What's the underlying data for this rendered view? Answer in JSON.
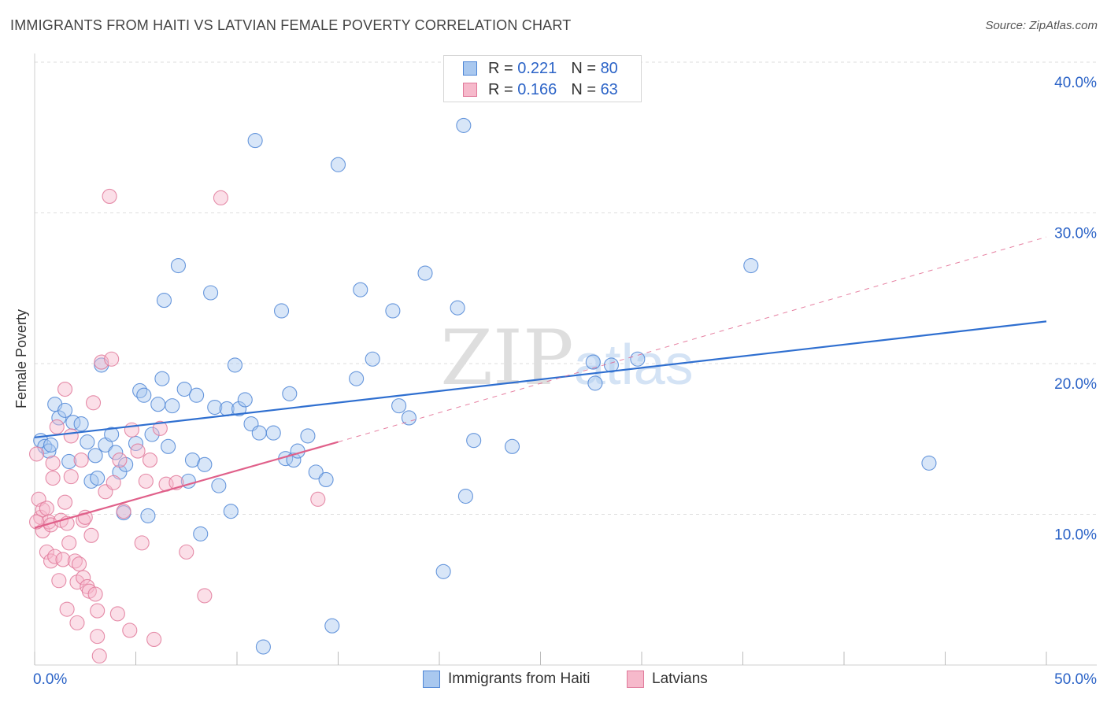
{
  "title": "IMMIGRANTS FROM HAITI VS LATVIAN FEMALE POVERTY CORRELATION CHART",
  "source": "Source: ZipAtlas.com",
  "watermark": "ZIPatlas",
  "legend_top": {
    "rows": [
      {
        "r_label": "R =",
        "r_value": "0.221",
        "n_label": "N =",
        "n_value": "80"
      },
      {
        "r_label": "R =",
        "r_value": "0.166",
        "n_label": "N =",
        "n_value": "63"
      }
    ]
  },
  "legend_bottom": {
    "items": [
      "Immigrants from Haiti",
      "Latvians"
    ]
  },
  "colors": {
    "haiti_fill": "#a9c8ef",
    "haiti_stroke": "#4f86d6",
    "haiti_line": "#2f6fd0",
    "latvian_fill": "#f6b9cb",
    "latvian_stroke": "#e0799a",
    "latvian_line": "#e0608a",
    "tick_text": "#2b63c7",
    "grid": "#dddddd"
  },
  "chart_data": {
    "type": "scatter",
    "title": "IMMIGRANTS FROM HAITI VS LATVIAN FEMALE POVERTY CORRELATION CHART",
    "xlabel": "",
    "ylabel": "Female Poverty",
    "xlim": [
      0,
      50
    ],
    "ylim": [
      0,
      40
    ],
    "x_tick_labels": [
      {
        "value": 0,
        "label": "0.0%"
      },
      {
        "value": 50,
        "label": "50.0%"
      }
    ],
    "y_tick_labels": [
      {
        "value": 10,
        "label": "10.0%"
      },
      {
        "value": 20,
        "label": "20.0%"
      },
      {
        "value": 30,
        "label": "30.0%"
      },
      {
        "value": 40,
        "label": "40.0%"
      }
    ],
    "series": [
      {
        "name": "Immigrants from Haiti",
        "r": 0.221,
        "n": 80,
        "trend": {
          "x": [
            0,
            50
          ],
          "y": [
            15.1,
            22.8
          ],
          "style": "solid"
        },
        "points": [
          [
            0.3,
            14.9
          ],
          [
            0.5,
            14.5
          ],
          [
            0.7,
            14.2
          ],
          [
            0.8,
            14.6
          ],
          [
            1.0,
            17.3
          ],
          [
            1.2,
            16.4
          ],
          [
            1.5,
            16.9
          ],
          [
            1.7,
            13.5
          ],
          [
            1.9,
            16.1
          ],
          [
            2.3,
            16.0
          ],
          [
            2.6,
            14.8
          ],
          [
            2.8,
            12.2
          ],
          [
            3.0,
            13.9
          ],
          [
            3.1,
            12.4
          ],
          [
            3.3,
            19.9
          ],
          [
            3.5,
            14.6
          ],
          [
            3.8,
            15.3
          ],
          [
            4.0,
            14.1
          ],
          [
            4.2,
            12.8
          ],
          [
            4.4,
            10.1
          ],
          [
            4.5,
            13.3
          ],
          [
            5.0,
            14.7
          ],
          [
            5.2,
            18.2
          ],
          [
            5.4,
            17.9
          ],
          [
            5.6,
            9.9
          ],
          [
            5.8,
            15.3
          ],
          [
            6.1,
            17.3
          ],
          [
            6.3,
            19.0
          ],
          [
            6.4,
            24.2
          ],
          [
            6.6,
            14.5
          ],
          [
            6.8,
            17.2
          ],
          [
            7.1,
            26.5
          ],
          [
            7.4,
            18.3
          ],
          [
            7.6,
            12.2
          ],
          [
            7.8,
            13.6
          ],
          [
            8.0,
            17.9
          ],
          [
            8.2,
            8.7
          ],
          [
            8.4,
            13.3
          ],
          [
            8.7,
            24.7
          ],
          [
            8.9,
            17.1
          ],
          [
            9.1,
            11.9
          ],
          [
            9.5,
            17.0
          ],
          [
            9.7,
            10.2
          ],
          [
            9.9,
            19.9
          ],
          [
            10.1,
            17.0
          ],
          [
            10.4,
            17.6
          ],
          [
            10.7,
            16.0
          ],
          [
            10.9,
            34.8
          ],
          [
            11.1,
            15.4
          ],
          [
            11.3,
            1.2
          ],
          [
            11.8,
            15.4
          ],
          [
            12.2,
            23.5
          ],
          [
            12.4,
            13.7
          ],
          [
            12.6,
            18.0
          ],
          [
            12.8,
            13.6
          ],
          [
            13.0,
            14.2
          ],
          [
            13.5,
            15.2
          ],
          [
            13.9,
            12.8
          ],
          [
            14.4,
            12.3
          ],
          [
            14.7,
            2.6
          ],
          [
            15.0,
            33.2
          ],
          [
            15.9,
            19.0
          ],
          [
            16.1,
            24.9
          ],
          [
            16.7,
            20.3
          ],
          [
            17.7,
            23.5
          ],
          [
            18.0,
            17.2
          ],
          [
            18.5,
            16.4
          ],
          [
            19.3,
            26.0
          ],
          [
            20.2,
            6.2
          ],
          [
            20.9,
            23.7
          ],
          [
            21.2,
            35.8
          ],
          [
            21.3,
            11.2
          ],
          [
            21.7,
            14.9
          ],
          [
            23.6,
            14.5
          ],
          [
            27.6,
            20.1
          ],
          [
            27.7,
            18.7
          ],
          [
            28.5,
            19.9
          ],
          [
            29.8,
            20.3
          ],
          [
            35.4,
            26.5
          ],
          [
            44.2,
            13.4
          ]
        ]
      },
      {
        "name": "Latvians",
        "r": 0.166,
        "n": 63,
        "trend": {
          "x": [
            0,
            15
          ],
          "y": [
            9.1,
            14.8
          ],
          "style": "solid"
        },
        "trend_extension": {
          "x": [
            15,
            50
          ],
          "y": [
            14.8,
            28.4
          ],
          "style": "dashed"
        },
        "points": [
          [
            0.1,
            14.0
          ],
          [
            0.2,
            11.0
          ],
          [
            0.3,
            9.8
          ],
          [
            0.4,
            8.9
          ],
          [
            0.4,
            10.3
          ],
          [
            0.6,
            10.4
          ],
          [
            0.6,
            7.5
          ],
          [
            0.7,
            9.5
          ],
          [
            0.8,
            6.9
          ],
          [
            0.8,
            9.3
          ],
          [
            0.9,
            13.4
          ],
          [
            0.9,
            12.4
          ],
          [
            1.0,
            7.2
          ],
          [
            1.1,
            15.8
          ],
          [
            1.2,
            5.6
          ],
          [
            1.3,
            9.6
          ],
          [
            1.4,
            7.0
          ],
          [
            1.5,
            18.3
          ],
          [
            1.5,
            10.8
          ],
          [
            1.6,
            9.4
          ],
          [
            1.6,
            3.7
          ],
          [
            1.7,
            8.1
          ],
          [
            1.8,
            15.2
          ],
          [
            1.8,
            12.5
          ],
          [
            2.0,
            6.9
          ],
          [
            2.1,
            5.5
          ],
          [
            2.1,
            2.8
          ],
          [
            2.2,
            6.7
          ],
          [
            2.3,
            13.6
          ],
          [
            2.4,
            5.8
          ],
          [
            2.4,
            9.6
          ],
          [
            2.5,
            9.8
          ],
          [
            2.6,
            5.2
          ],
          [
            2.7,
            4.9
          ],
          [
            2.8,
            8.6
          ],
          [
            2.9,
            17.4
          ],
          [
            3.0,
            4.7
          ],
          [
            3.1,
            3.6
          ],
          [
            3.1,
            1.9
          ],
          [
            3.2,
            0.6
          ],
          [
            3.3,
            20.1
          ],
          [
            3.5,
            11.5
          ],
          [
            3.7,
            31.1
          ],
          [
            3.8,
            20.3
          ],
          [
            3.9,
            12.1
          ],
          [
            4.1,
            3.4
          ],
          [
            4.2,
            13.6
          ],
          [
            4.4,
            10.2
          ],
          [
            4.7,
            2.3
          ],
          [
            4.8,
            15.6
          ],
          [
            5.1,
            14.2
          ],
          [
            5.3,
            8.1
          ],
          [
            5.5,
            12.2
          ],
          [
            5.7,
            13.6
          ],
          [
            5.9,
            1.7
          ],
          [
            6.2,
            15.7
          ],
          [
            6.5,
            12.0
          ],
          [
            7.0,
            12.1
          ],
          [
            7.5,
            7.5
          ],
          [
            8.4,
            4.6
          ],
          [
            9.2,
            31.0
          ],
          [
            14.0,
            11.0
          ],
          [
            0.1,
            9.5
          ]
        ]
      }
    ]
  }
}
